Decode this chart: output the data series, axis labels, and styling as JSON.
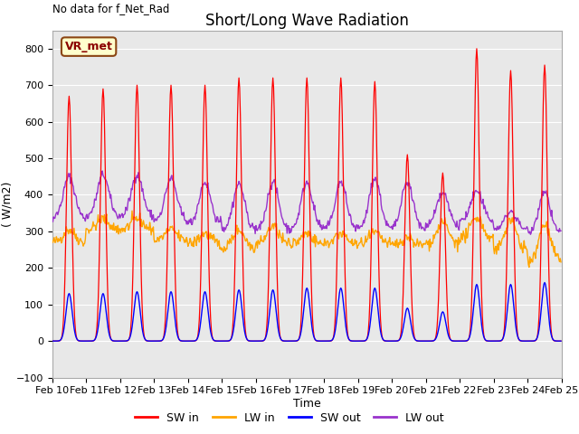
{
  "title": "Short/Long Wave Radiation",
  "xlabel": "Time",
  "ylabel": "( W/m2)",
  "ylim": [
    -100,
    850
  ],
  "yticks": [
    -100,
    0,
    100,
    200,
    300,
    400,
    500,
    600,
    700,
    800
  ],
  "n_days": 15,
  "date_labels": [
    "Feb 10",
    "Feb 11",
    "Feb 12",
    "Feb 13",
    "Feb 14",
    "Feb 15",
    "Feb 16",
    "Feb 17",
    "Feb 18",
    "Feb 19",
    "Feb 20",
    "Feb 21",
    "Feb 22",
    "Feb 23",
    "Feb 24",
    "Feb 25"
  ],
  "no_data_text": "No data for f_Net_Rad",
  "legend_label_text": "VR_met",
  "colors": {
    "SW_in": "#ff0000",
    "LW_in": "#ffa500",
    "SW_out": "#0000ff",
    "LW_out": "#9933cc"
  },
  "background_color": "#e8e8e8",
  "fig_bg": "#ffffff",
  "hours_per_day": 24,
  "dt_hours": 0.5,
  "SW_in_peaks": [
    670,
    690,
    700,
    700,
    700,
    720,
    720,
    720,
    720,
    710,
    510,
    460,
    800,
    740,
    755
  ],
  "SW_in_sigma": [
    1.8,
    1.8,
    1.8,
    1.8,
    1.8,
    1.8,
    1.8,
    1.8,
    1.8,
    1.8,
    1.8,
    1.8,
    1.8,
    1.8,
    1.8
  ],
  "SW_out_peaks": [
    130,
    130,
    135,
    135,
    135,
    140,
    140,
    145,
    145,
    145,
    90,
    80,
    155,
    155,
    160
  ],
  "SW_out_sigma": [
    2.2,
    2.2,
    2.2,
    2.2,
    2.2,
    2.2,
    2.2,
    2.2,
    2.2,
    2.2,
    2.2,
    2.2,
    2.2,
    2.2,
    2.2
  ],
  "LW_in_base": [
    270,
    305,
    305,
    275,
    265,
    255,
    265,
    265,
    265,
    265,
    260,
    265,
    280,
    250,
    220
  ],
  "LW_in_noise": [
    8,
    8,
    8,
    8,
    8,
    8,
    8,
    8,
    8,
    8,
    8,
    8,
    8,
    8,
    8
  ],
  "LW_in_day_bump": [
    35,
    30,
    30,
    30,
    30,
    50,
    50,
    30,
    30,
    30,
    25,
    60,
    60,
    80,
    100
  ],
  "LW_out_base": [
    335,
    340,
    340,
    330,
    320,
    305,
    305,
    305,
    305,
    305,
    305,
    315,
    330,
    305,
    295
  ],
  "LW_out_day_bump": [
    115,
    115,
    115,
    115,
    115,
    125,
    130,
    130,
    130,
    140,
    130,
    90,
    80,
    50,
    110
  ],
  "LW_out_noise": [
    6,
    6,
    6,
    6,
    6,
    6,
    6,
    6,
    6,
    6,
    6,
    6,
    6,
    6,
    6
  ],
  "peak_hour": [
    12,
    12,
    12,
    12,
    12,
    12,
    12,
    12,
    12,
    12,
    11,
    12,
    12,
    12,
    12
  ],
  "subplots_adjust": [
    0.09,
    0.13,
    0.97,
    0.93
  ]
}
